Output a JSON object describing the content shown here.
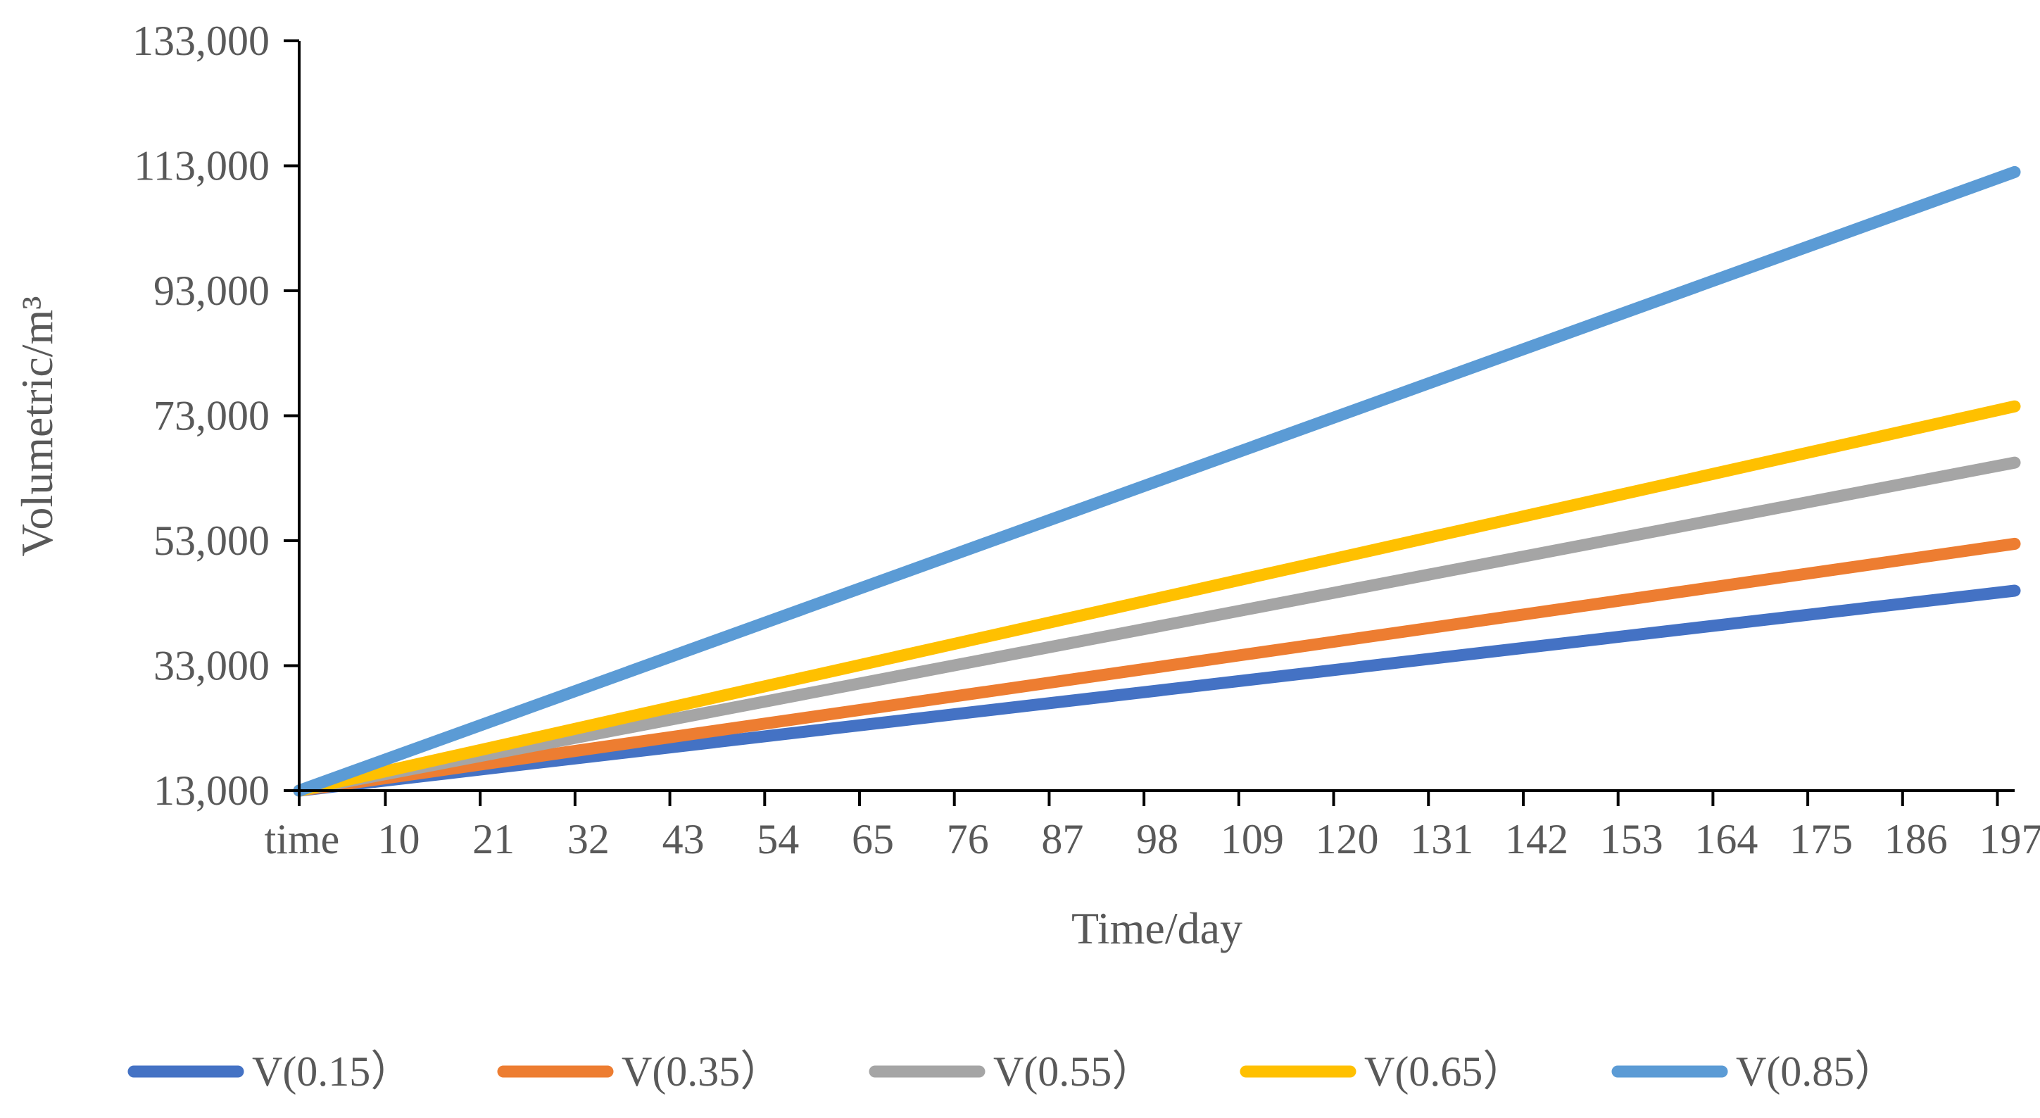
{
  "chart_data": {
    "type": "line",
    "title": "",
    "xlabel": "Time/day",
    "ylabel": "Volumetric/m³",
    "x_tick_labels": [
      "time",
      "10",
      "21",
      "32",
      "43",
      "54",
      "65",
      "76",
      "87",
      "98",
      "109",
      "120",
      "131",
      "142",
      "153",
      "164",
      "175",
      "186",
      "197"
    ],
    "x_tick_values": [
      0,
      10,
      21,
      32,
      43,
      54,
      65,
      76,
      87,
      98,
      109,
      120,
      131,
      142,
      153,
      164,
      175,
      186,
      197
    ],
    "xlim": [
      0,
      199
    ],
    "y_tick_labels": [
      "13,000",
      "33,000",
      "53,000",
      "73,000",
      "93,000",
      "113,000",
      "133,000"
    ],
    "y_tick_values": [
      13000,
      33000,
      53000,
      73000,
      93000,
      113000,
      133000
    ],
    "ylim": [
      13000,
      133000
    ],
    "grid": false,
    "legend_position": "bottom",
    "series": [
      {
        "name": "V(0.15）",
        "color": "#4472C4",
        "x": [
          0,
          199
        ],
        "values": [
          13000,
          45000
        ]
      },
      {
        "name": "V(0.35）",
        "color": "#ED7D31",
        "x": [
          0,
          199
        ],
        "values": [
          13000,
          52500
        ]
      },
      {
        "name": "V(0.55）",
        "color": "#A5A5A5",
        "x": [
          0,
          199
        ],
        "values": [
          13000,
          65500
        ]
      },
      {
        "name": "V(0.65）",
        "color": "#FFC000",
        "x": [
          0,
          199
        ],
        "values": [
          13000,
          74500
        ]
      },
      {
        "name": "V(0.85）",
        "color": "#5B9BD5",
        "x": [
          0,
          199
        ],
        "values": [
          13000,
          112000
        ]
      }
    ]
  },
  "colors": {
    "axis": "#000000",
    "text": "#595959",
    "background": "#ffffff"
  }
}
